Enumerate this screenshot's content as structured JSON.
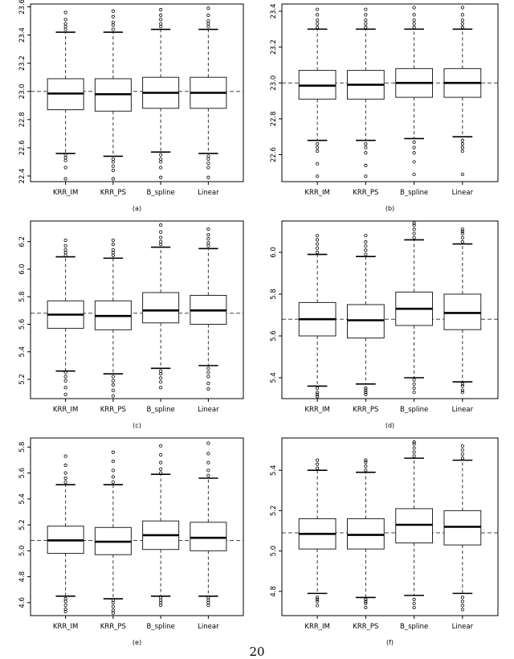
{
  "page_number": "20",
  "chart_data": [
    {
      "type": "box",
      "caption": "(a)",
      "categories": [
        "KRR_IM",
        "KRR_PS",
        "B_spline",
        "Linear"
      ],
      "yticks": [
        22.4,
        22.6,
        22.8,
        23.0,
        23.2,
        23.4,
        23.6
      ],
      "ytick_labels": [
        "22.4",
        "22.6",
        "22.8",
        "23.0",
        "23.2",
        "23.4",
        "23.6"
      ],
      "ylim": [
        22.36,
        23.62
      ],
      "reference_line": 23.0,
      "boxes": [
        {
          "q1": 22.87,
          "median": 22.985,
          "q3": 23.09,
          "whisker_low": 22.56,
          "whisker_high": 23.42,
          "outliers_low": [
            22.55,
            22.53,
            22.51,
            22.46,
            22.38
          ],
          "outliers_high": [
            23.44,
            23.46,
            23.48,
            23.51,
            23.56
          ]
        },
        {
          "q1": 22.86,
          "median": 22.98,
          "q3": 23.09,
          "whisker_low": 22.54,
          "whisker_high": 23.42,
          "outliers_low": [
            22.52,
            22.5,
            22.47,
            22.44,
            22.38
          ],
          "outliers_high": [
            23.44,
            23.47,
            23.49,
            23.53,
            23.57
          ]
        },
        {
          "q1": 22.88,
          "median": 22.99,
          "q3": 23.1,
          "whisker_low": 22.57,
          "whisker_high": 23.44,
          "outliers_low": [
            22.55,
            22.52,
            22.5,
            22.46,
            22.39
          ],
          "outliers_high": [
            23.46,
            23.48,
            23.51,
            23.54,
            23.58
          ]
        },
        {
          "q1": 22.88,
          "median": 22.99,
          "q3": 23.1,
          "whisker_low": 22.56,
          "whisker_high": 23.44,
          "outliers_low": [
            22.54,
            22.52,
            22.49,
            22.46,
            22.39
          ],
          "outliers_high": [
            23.46,
            23.48,
            23.5,
            23.54,
            23.59
          ]
        }
      ]
    },
    {
      "type": "box",
      "caption": "(b)",
      "categories": [
        "KRR_IM",
        "KRR_PS",
        "B_spline",
        "Linear"
      ],
      "yticks": [
        22.6,
        22.8,
        23.0,
        23.2,
        23.4
      ],
      "ytick_labels": [
        "22.6",
        "22.8",
        "23.0",
        "23.2",
        "23.4"
      ],
      "ylim": [
        22.45,
        23.44
      ],
      "reference_line": 23.0,
      "boxes": [
        {
          "q1": 22.91,
          "median": 22.985,
          "q3": 23.07,
          "whisker_low": 22.68,
          "whisker_high": 23.3,
          "outliers_low": [
            22.66,
            22.64,
            22.62,
            22.55,
            22.48
          ],
          "outliers_high": [
            23.31,
            23.33,
            23.35,
            23.38,
            23.41
          ]
        },
        {
          "q1": 22.91,
          "median": 22.99,
          "q3": 23.07,
          "whisker_low": 22.68,
          "whisker_high": 23.3,
          "outliers_low": [
            22.66,
            22.64,
            22.61,
            22.54,
            22.48
          ],
          "outliers_high": [
            23.31,
            23.33,
            23.35,
            23.38,
            23.41
          ]
        },
        {
          "q1": 22.92,
          "median": 23.0,
          "q3": 23.08,
          "whisker_low": 22.69,
          "whisker_high": 23.3,
          "outliers_low": [
            22.67,
            22.64,
            22.61,
            22.56,
            22.49
          ],
          "outliers_high": [
            23.31,
            23.33,
            23.35,
            23.38,
            23.42
          ]
        },
        {
          "q1": 22.92,
          "median": 23.0,
          "q3": 23.08,
          "whisker_low": 22.7,
          "whisker_high": 23.3,
          "outliers_low": [
            22.68,
            22.66,
            22.64,
            22.62,
            22.49
          ],
          "outliers_high": [
            23.31,
            23.33,
            23.35,
            23.38,
            23.42
          ]
        }
      ]
    },
    {
      "type": "box",
      "caption": "(c)",
      "categories": [
        "KRR_IM",
        "KRR_PS",
        "B_spline",
        "Linear"
      ],
      "yticks": [
        5.2,
        5.4,
        5.6,
        5.8,
        6.0,
        6.2
      ],
      "ytick_labels": [
        "5.2",
        "5.4",
        "5.6",
        "5.8",
        "6.0",
        "6.2"
      ],
      "ylim": [
        5.06,
        6.35
      ],
      "reference_line": 5.68,
      "boxes": [
        {
          "q1": 5.57,
          "median": 5.67,
          "q3": 5.77,
          "whisker_low": 5.26,
          "whisker_high": 6.09,
          "outliers_low": [
            5.25,
            5.22,
            5.19,
            5.14,
            5.09
          ],
          "outliers_high": [
            6.1,
            6.12,
            6.14,
            6.17,
            6.21
          ]
        },
        {
          "q1": 5.56,
          "median": 5.66,
          "q3": 5.77,
          "whisker_low": 5.24,
          "whisker_high": 6.08,
          "outliers_low": [
            5.22,
            5.19,
            5.16,
            5.12,
            5.08
          ],
          "outliers_high": [
            6.1,
            6.12,
            6.14,
            6.18,
            6.21
          ]
        },
        {
          "q1": 5.61,
          "median": 5.7,
          "q3": 5.83,
          "whisker_low": 5.28,
          "whisker_high": 6.16,
          "outliers_low": [
            5.26,
            5.24,
            5.21,
            5.18,
            5.14
          ],
          "outliers_high": [
            6.18,
            6.2,
            6.23,
            6.27,
            6.32
          ]
        },
        {
          "q1": 5.6,
          "median": 5.7,
          "q3": 5.81,
          "whisker_low": 5.3,
          "whisker_high": 6.15,
          "outliers_low": [
            5.28,
            5.25,
            5.22,
            5.17,
            5.13
          ],
          "outliers_high": [
            6.17,
            6.19,
            6.22,
            6.25,
            6.29
          ]
        }
      ]
    },
    {
      "type": "box",
      "caption": "(d)",
      "categories": [
        "KRR_IM",
        "KRR_PS",
        "B_spline",
        "Linear"
      ],
      "yticks": [
        5.4,
        5.6,
        5.8,
        6.0
      ],
      "ytick_labels": [
        "5.4",
        "5.6",
        "5.8",
        "6.0"
      ],
      "ylim": [
        5.3,
        6.15
      ],
      "reference_line": 5.68,
      "boxes": [
        {
          "q1": 5.6,
          "median": 5.68,
          "q3": 5.76,
          "whisker_low": 5.36,
          "whisker_high": 5.99,
          "outliers_low": [
            5.35,
            5.33,
            5.32,
            5.31
          ],
          "outliers_high": [
            6.0,
            6.02,
            6.04,
            6.06,
            6.08
          ]
        },
        {
          "q1": 5.59,
          "median": 5.675,
          "q3": 5.75,
          "whisker_low": 5.37,
          "whisker_high": 5.98,
          "outliers_low": [
            5.35,
            5.34,
            5.33,
            5.32
          ],
          "outliers_high": [
            5.99,
            6.01,
            6.03,
            6.05,
            6.08
          ]
        },
        {
          "q1": 5.65,
          "median": 5.73,
          "q3": 5.81,
          "whisker_low": 5.4,
          "whisker_high": 6.06,
          "outliers_low": [
            5.39,
            5.37,
            5.35,
            5.33
          ],
          "outliers_high": [
            6.07,
            6.09,
            6.11,
            6.13,
            6.14
          ]
        },
        {
          "q1": 5.63,
          "median": 5.71,
          "q3": 5.8,
          "whisker_low": 5.38,
          "whisker_high": 6.04,
          "outliers_low": [
            5.37,
            5.36,
            5.34,
            5.33
          ],
          "outliers_high": [
            6.05,
            6.07,
            6.09,
            6.1,
            6.11
          ]
        }
      ]
    },
    {
      "type": "box",
      "caption": "(e)",
      "categories": [
        "KRR_IM",
        "KRR_PS",
        "B_spline",
        "Linear"
      ],
      "yticks": [
        4.6,
        4.8,
        5.0,
        5.2,
        5.4,
        5.6,
        5.8
      ],
      "ytick_labels": [
        "4.6",
        "4.8",
        "5.0",
        "5.2",
        "5.4",
        "5.6",
        "5.8"
      ],
      "ylim": [
        4.5,
        5.87
      ],
      "reference_line": 5.08,
      "boxes": [
        {
          "q1": 4.98,
          "median": 5.08,
          "q3": 5.19,
          "whisker_low": 4.65,
          "whisker_high": 5.51,
          "outliers_low": [
            4.63,
            4.61,
            4.58,
            4.55,
            4.53
          ],
          "outliers_high": [
            5.53,
            5.56,
            5.6,
            5.66,
            5.73
          ]
        },
        {
          "q1": 4.97,
          "median": 5.07,
          "q3": 5.18,
          "whisker_low": 4.63,
          "whisker_high": 5.51,
          "outliers_low": [
            4.62,
            4.6,
            4.57,
            4.54,
            4.52
          ],
          "outliers_high": [
            5.53,
            5.57,
            5.62,
            5.69,
            5.76
          ]
        },
        {
          "q1": 5.01,
          "median": 5.12,
          "q3": 5.23,
          "whisker_low": 4.65,
          "whisker_high": 5.59,
          "outliers_low": [
            4.64,
            4.62,
            4.6,
            4.58
          ],
          "outliers_high": [
            5.6,
            5.63,
            5.68,
            5.74,
            5.81
          ]
        },
        {
          "q1": 5.0,
          "median": 5.1,
          "q3": 5.22,
          "whisker_low": 4.65,
          "whisker_high": 5.56,
          "outliers_low": [
            4.64,
            4.62,
            4.6,
            4.58
          ],
          "outliers_high": [
            5.58,
            5.62,
            5.68,
            5.75,
            5.83
          ]
        }
      ]
    },
    {
      "type": "box",
      "caption": "(f)",
      "categories": [
        "KRR_IM",
        "KRR_PS",
        "B_spline",
        "Linear"
      ],
      "yticks": [
        4.8,
        5.0,
        5.2,
        5.4
      ],
      "ytick_labels": [
        "4.8",
        "5.0",
        "5.2",
        "5.4"
      ],
      "ylim": [
        4.68,
        5.56
      ],
      "reference_line": 5.09,
      "boxes": [
        {
          "q1": 5.01,
          "median": 5.085,
          "q3": 5.16,
          "whisker_low": 4.79,
          "whisker_high": 5.4,
          "outliers_low": [
            4.77,
            4.76,
            4.75,
            4.73
          ],
          "outliers_high": [
            5.41,
            5.43,
            5.45
          ]
        },
        {
          "q1": 5.01,
          "median": 5.08,
          "q3": 5.16,
          "whisker_low": 4.77,
          "whisker_high": 5.39,
          "outliers_low": [
            4.76,
            4.75,
            4.74,
            4.72
          ],
          "outliers_high": [
            5.4,
            5.42,
            5.44,
            5.45
          ]
        },
        {
          "q1": 5.04,
          "median": 5.13,
          "q3": 5.21,
          "whisker_low": 4.78,
          "whisker_high": 5.46,
          "outliers_low": [
            4.76,
            4.74,
            4.72
          ],
          "outliers_high": [
            5.47,
            5.49,
            5.51,
            5.53,
            5.54
          ]
        },
        {
          "q1": 5.03,
          "median": 5.12,
          "q3": 5.2,
          "whisker_low": 4.79,
          "whisker_high": 5.45,
          "outliers_low": [
            4.77,
            4.75,
            4.73,
            4.71
          ],
          "outliers_high": [
            5.46,
            5.48,
            5.5,
            5.52
          ]
        }
      ]
    }
  ]
}
